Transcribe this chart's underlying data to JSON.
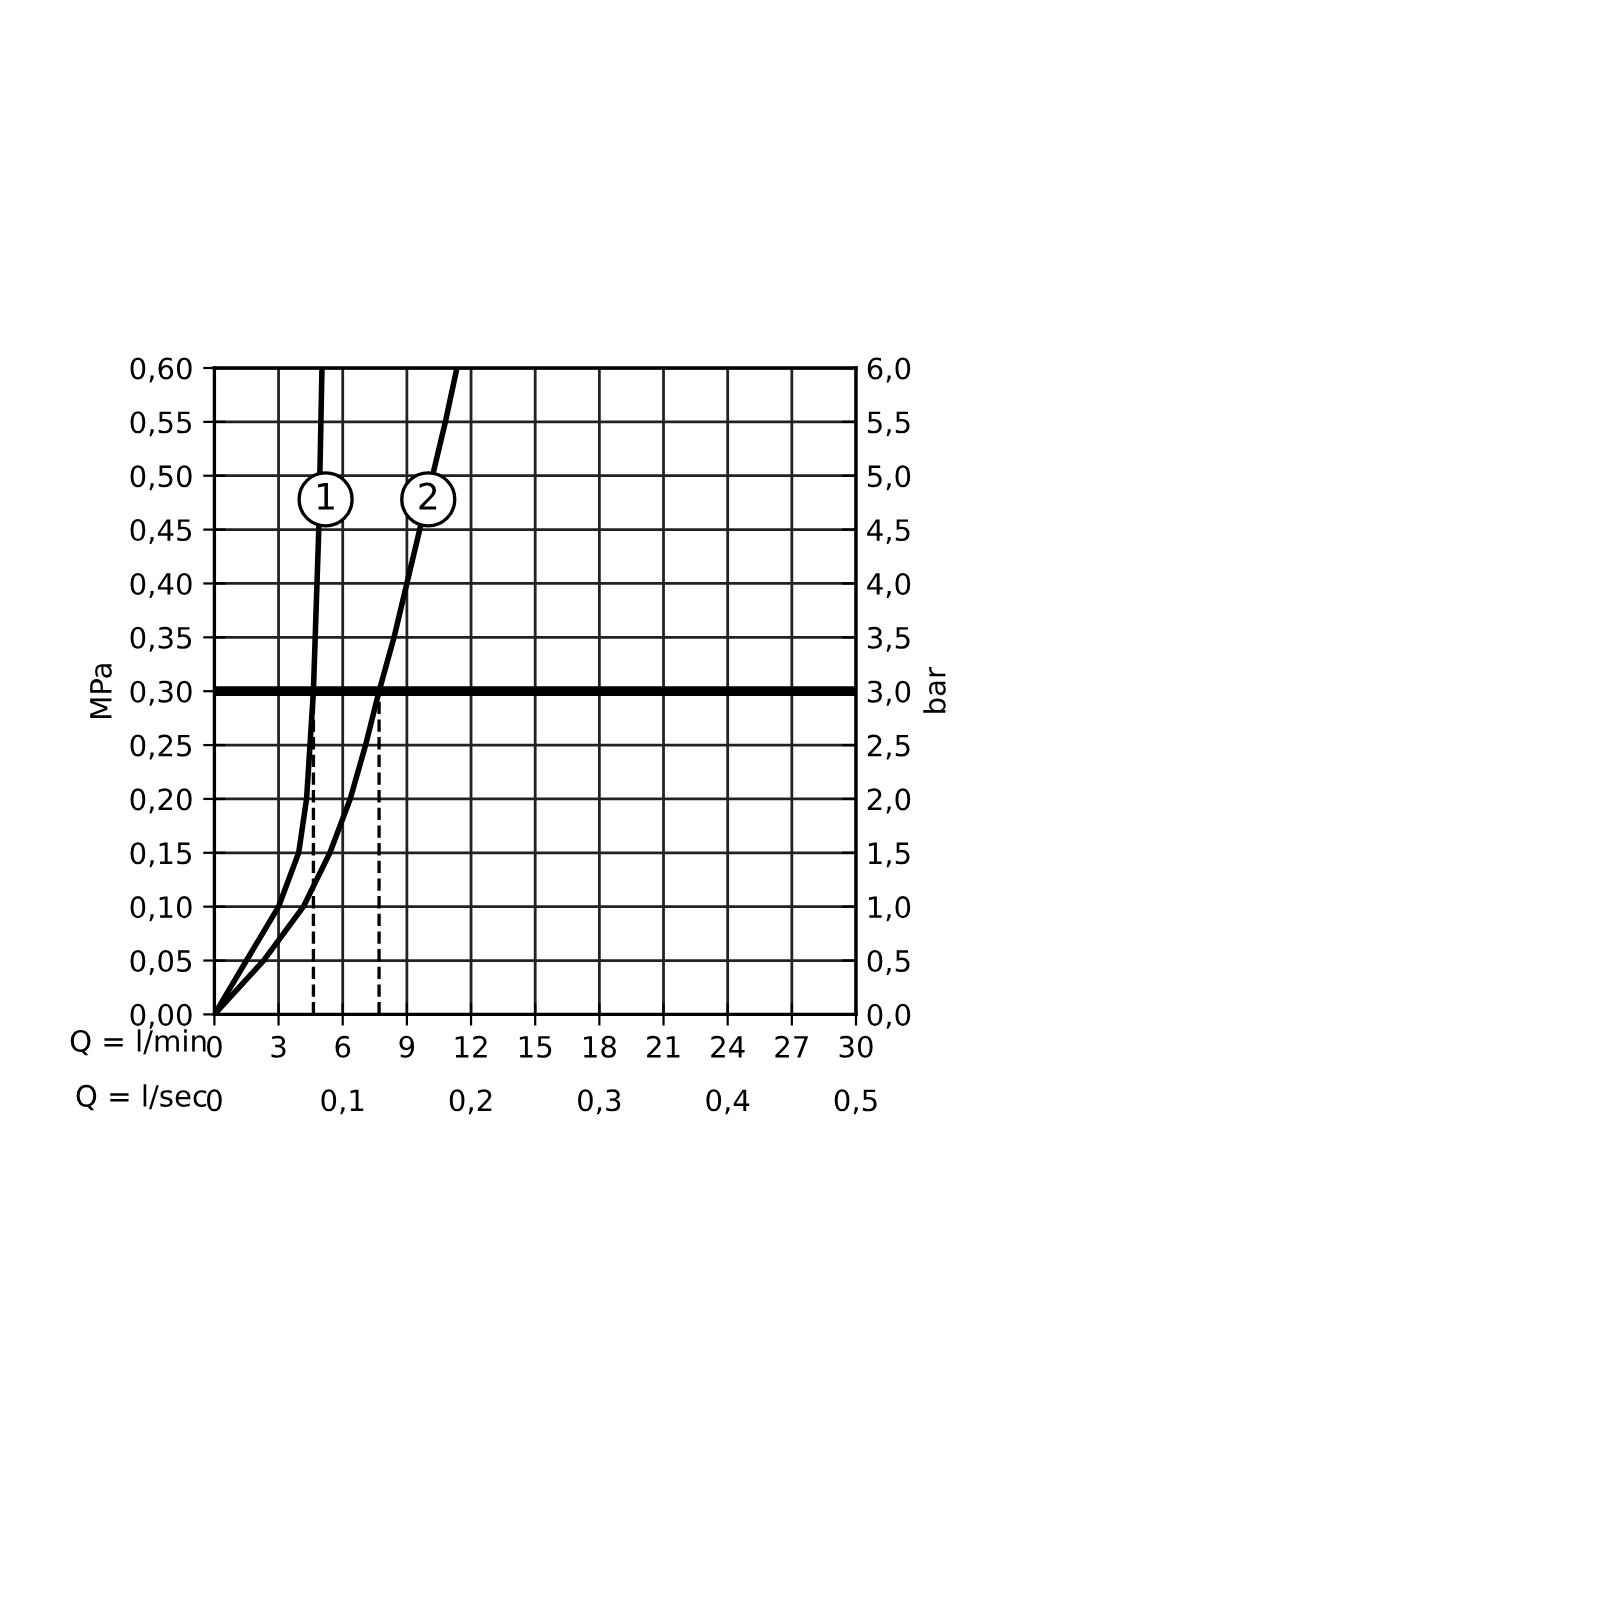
{
  "chart_data": {
    "type": "line",
    "xlabel": "Q = l/min",
    "x2label": "Q = l/sec",
    "ylabel": "MPa",
    "y2label": "bar",
    "series": [
      {
        "color": "#000000",
        "x": [
          0,
          1.5,
          3.0,
          3.94,
          4.31,
          4.63,
          4.88,
          5.03
        ],
        "values": [
          0,
          0.05,
          0.1,
          0.15,
          0.2,
          0.3,
          0.45,
          0.6
        ]
      },
      {
        "color": "#000000",
        "x": [
          0,
          2.3,
          4.16,
          5.4,
          6.35,
          7.07,
          7.7,
          8.4,
          9.0,
          9.6,
          10.8,
          11.34
        ],
        "values": [
          0,
          0.05,
          0.1,
          0.15,
          0.2,
          0.25,
          0.3,
          0.35,
          0.4,
          0.45,
          0.55,
          0.6
        ]
      }
    ],
    "annotations": [
      {
        "text": "1",
        "x": 5.2,
        "y": 0.478
      },
      {
        "text": "2",
        "x": 10.0,
        "y": 0.478
      }
    ],
    "ref_lines": [
      {
        "axis": "y",
        "value": 0.3,
        "color": "#000000",
        "line_style": "solid"
      },
      {
        "axis": "x",
        "value": 4.63,
        "color": "#000000",
        "line_style": "dashed"
      },
      {
        "axis": "x",
        "value": 7.7,
        "color": "#000000",
        "line_style": "dashed"
      }
    ],
    "xlim": [
      0,
      30
    ],
    "xticks": [
      0,
      3,
      6,
      9,
      12,
      15,
      18,
      21,
      24,
      27,
      30
    ],
    "x2lim": [
      0,
      0.5
    ],
    "x2ticks": [
      0,
      {
        "value": 0.1,
        "label": "0,1"
      },
      {
        "value": 0.2,
        "label": "0,2"
      },
      {
        "value": 0.3,
        "label": "0,3"
      },
      {
        "value": 0.4,
        "label": "0,4"
      },
      {
        "value": 0.5,
        "label": "0,5"
      }
    ],
    "ylim": [
      0,
      0.6
    ],
    "yticks": [
      {
        "value": 0,
        "label": "0,00"
      },
      {
        "value": 0.05,
        "label": "0,05"
      },
      {
        "value": 0.1,
        "label": "0,10"
      },
      {
        "value": 0.15,
        "label": "0,15"
      },
      {
        "value": 0.2,
        "label": "0,20"
      },
      {
        "value": 0.25,
        "label": "0,25"
      },
      {
        "value": 0.3,
        "label": "0,30"
      },
      {
        "value": 0.35,
        "label": "0,35"
      },
      {
        "value": 0.4,
        "label": "0,40"
      },
      {
        "value": 0.45,
        "label": "0,45"
      },
      {
        "value": 0.5,
        "label": "0,50"
      },
      {
        "value": 0.55,
        "label": "0,55"
      },
      {
        "value": 0.6,
        "label": "0,60"
      }
    ],
    "y2lim": [
      0,
      6
    ],
    "y2ticks": [
      {
        "value": 0,
        "label": "0,0"
      },
      {
        "value": 0.5,
        "label": "0,5"
      },
      {
        "value": 1,
        "label": "1,0"
      },
      {
        "value": 1.5,
        "label": "1,5"
      },
      {
        "value": 2,
        "label": "2,0"
      },
      {
        "value": 2.5,
        "label": "2,5"
      },
      {
        "value": 3,
        "label": "3,0"
      },
      {
        "value": 3.5,
        "label": "3,5"
      },
      {
        "value": 4,
        "label": "4,0"
      },
      {
        "value": 4.5,
        "label": "4,5"
      },
      {
        "value": 5,
        "label": "5,0"
      },
      {
        "value": 5.5,
        "label": "5,5"
      },
      {
        "value": 6,
        "label": "6,0"
      }
    ],
    "grid": true,
    "marker": "none",
    "line_style": "solid"
  }
}
